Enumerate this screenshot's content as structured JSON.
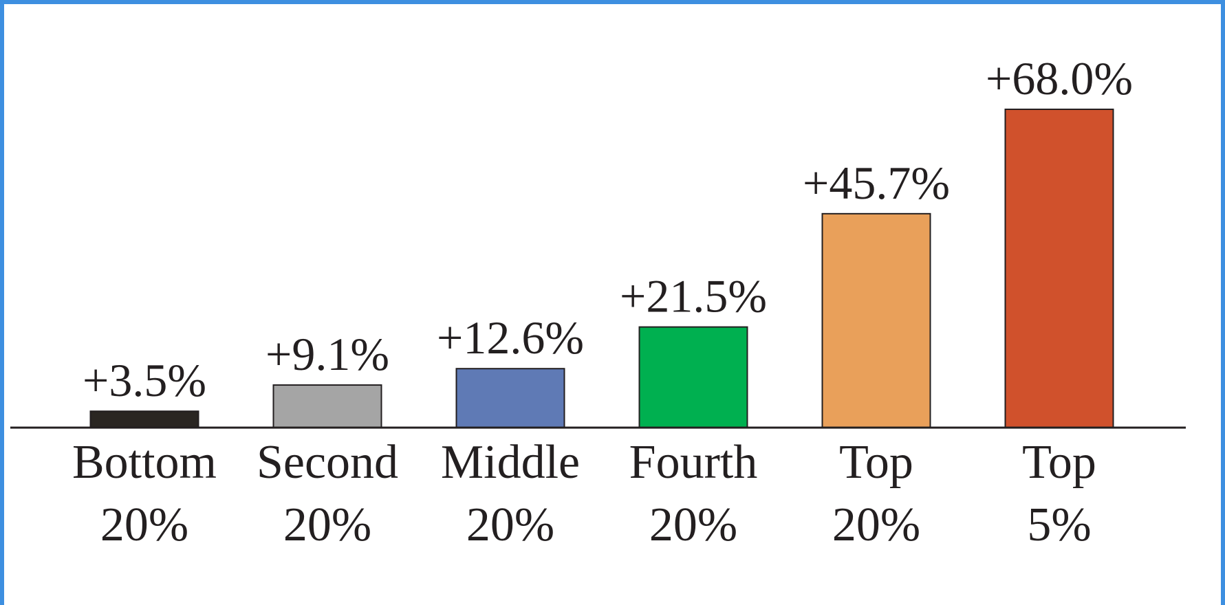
{
  "chart_data": {
    "type": "bar",
    "categories": [
      "Bottom 20%",
      "Second 20%",
      "Middle 20%",
      "Fourth 20%",
      "Top 20%",
      "Top 5%"
    ],
    "values": [
      3.5,
      9.1,
      12.6,
      21.5,
      45.7,
      68.0
    ],
    "value_labels": [
      "+3.5%",
      "+9.1%",
      "+12.6%",
      "+21.5%",
      "+45.7%",
      "+68.0%"
    ],
    "colors": [
      "#2a2622",
      "#a5a5a5",
      "#5f7ab5",
      "#00b050",
      "#e9a05a",
      "#d0512c"
    ]
  }
}
